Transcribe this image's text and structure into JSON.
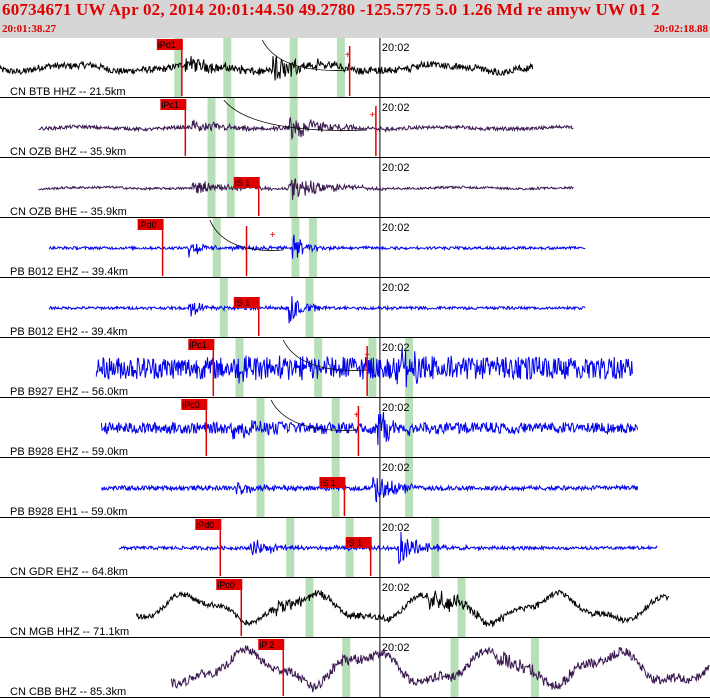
{
  "header": {
    "title": "60734671 UW Apr 02, 2014 20:01:44.50   49.2780 -125.5775  5.0 1.26 Md re amyw UW 01   2",
    "start_time": "20:01:38.27",
    "end_time": "20:02:18.88"
  },
  "colors": {
    "header_bg": "#d6d6d6",
    "header_text": "#e00000",
    "pick_red": "#e00000",
    "green_band": "#b8e0b8",
    "trace_black": "#000000",
    "trace_purple": "#3a1850",
    "trace_blue": "#0000ee"
  },
  "time_axis": {
    "start_s": 0,
    "end_s": 40.61,
    "minute_mark_s": 21.73,
    "minute_label": "20:02"
  },
  "traces": [
    {
      "label": "CN BTB HHZ -- 21.5km",
      "color": "black",
      "p_pick": "iPd1",
      "p_pick_s": 10.4,
      "s_pick": "",
      "s_pick_s": null,
      "green_s": [
        10.2,
        13.0,
        16.8,
        19.5
      ],
      "seis_start_s": 0.0,
      "seis_end_s": 30.5,
      "onset_s": 10.6,
      "s_arrival_s": 15.6,
      "noise": 0.12,
      "amp": 0.55,
      "lf": 0.12,
      "tail_s": 1.6,
      "end_pick_s": 20.0,
      "cross_s": 19.9,
      "curve_start_s": 15.0,
      "curve_end_s": 20.0
    },
    {
      "label": "CN OZB BHZ -- 35.9km",
      "color": "purple",
      "p_pick": "iPc1",
      "p_pick_s": 10.6,
      "s_pick": "",
      "s_pick_s": null,
      "green_s": [
        12.1,
        16.8,
        13.2
      ],
      "seis_start_s": 2.2,
      "seis_end_s": 32.8,
      "onset_s": 11.0,
      "s_arrival_s": 16.5,
      "noise": 0.06,
      "amp": 0.5,
      "lf": 0.04,
      "tail_s": 1.8,
      "end_pick_s": 21.5,
      "cross_s": 21.3,
      "curve_start_s": 12.8,
      "curve_end_s": 21.0
    },
    {
      "label": "CN OZB BHE -- 35.9km",
      "color": "purple",
      "p_pick": "",
      "p_pick_s": null,
      "s_pick": "iS 1",
      "s_pick_s": 14.8,
      "green_s": [
        12.1,
        16.8,
        13.2
      ],
      "seis_start_s": 2.2,
      "seis_end_s": 32.8,
      "onset_s": 11.0,
      "s_arrival_s": 16.5,
      "noise": 0.04,
      "amp": 0.55,
      "lf": 0.03,
      "tail_s": 1.6,
      "end_pick_s": null,
      "cross_s": null,
      "curve_start_s": null,
      "curve_end_s": null
    },
    {
      "label": "PB B012 EHZ -- 39.4km",
      "color": "blue",
      "p_pick": "iPd0",
      "p_pick_s": 9.3,
      "s_pick": "",
      "s_pick_s": null,
      "green_s": [
        12.4,
        16.9,
        17.9
      ],
      "seis_start_s": 2.8,
      "seis_end_s": 33.5,
      "onset_s": 10.8,
      "s_arrival_s": 16.7,
      "noise": 0.05,
      "amp": 0.6,
      "lf": 0.0,
      "tail_s": 0.8,
      "end_pick_s": 14.1,
      "cross_s": 15.6,
      "curve_start_s": 12.0,
      "curve_end_s": 16.2
    },
    {
      "label": "PB B012 EH2 -- 39.4km",
      "color": "blue",
      "p_pick": "",
      "p_pick_s": null,
      "s_pick": "iS 1",
      "s_pick_s": 14.8,
      "green_s": [
        12.8,
        17.7
      ],
      "seis_start_s": 2.8,
      "seis_end_s": 33.5,
      "onset_s": 10.8,
      "s_arrival_s": 16.5,
      "noise": 0.05,
      "amp": 0.6,
      "lf": 0.0,
      "tail_s": 0.8,
      "end_pick_s": null,
      "cross_s": null,
      "curve_start_s": null,
      "curve_end_s": null
    },
    {
      "label": "PB B927 EHZ -- 56.0km",
      "color": "blue",
      "p_pick": "iPc1",
      "p_pick_s": 12.2,
      "s_pick": "",
      "s_pick_s": null,
      "green_s": [
        13.7,
        18.2,
        21.3,
        23.4
      ],
      "seis_start_s": 5.5,
      "seis_end_s": 36.2,
      "onset_s": 13.6,
      "s_arrival_s": 22.4,
      "noise": 0.4,
      "amp": 0.55,
      "lf": 0.0,
      "tail_s": 1.6,
      "end_pick_s": 21.0,
      "cross_s": 21.0,
      "curve_start_s": 16.2,
      "curve_end_s": 21.0
    },
    {
      "label": "PB B928 EHZ -- 59.0km",
      "color": "blue",
      "p_pick": "iPc0",
      "p_pick_s": 11.8,
      "s_pick": "",
      "s_pick_s": null,
      "green_s": [
        14.9,
        19.2,
        23.4
      ],
      "seis_start_s": 5.8,
      "seis_end_s": 36.5,
      "onset_s": 13.3,
      "s_arrival_s": 21.6,
      "noise": 0.2,
      "amp": 0.6,
      "lf": 0.0,
      "tail_s": 1.4,
      "end_pick_s": 20.5,
      "cross_s": 20.4,
      "curve_start_s": 15.5,
      "curve_end_s": 20.5
    },
    {
      "label": "PB B928 EH1 -- 59.0km",
      "color": "blue",
      "p_pick": "",
      "p_pick_s": null,
      "s_pick": "iS 1",
      "s_pick_s": 19.7,
      "green_s": [
        14.9,
        19.2,
        23.4
      ],
      "seis_start_s": 5.8,
      "seis_end_s": 36.5,
      "onset_s": 13.5,
      "s_arrival_s": 21.3,
      "noise": 0.08,
      "amp": 0.65,
      "lf": 0.0,
      "tail_s": 1.1,
      "end_pick_s": null,
      "cross_s": null,
      "curve_start_s": null,
      "curve_end_s": null
    },
    {
      "label": "CN GDR EHZ -- 64.8km",
      "color": "blue",
      "p_pick": "iPd0",
      "p_pick_s": 12.6,
      "s_pick": "iS 1",
      "s_pick_s": 21.2,
      "green_s": [
        16.6,
        20.0,
        24.9
      ],
      "seis_start_s": 6.8,
      "seis_end_s": 37.6,
      "onset_s": 14.3,
      "s_arrival_s": 22.8,
      "noise": 0.06,
      "amp": 0.6,
      "lf": 0.0,
      "tail_s": 1.3,
      "end_pick_s": null,
      "cross_s": null,
      "curve_start_s": null,
      "curve_end_s": null
    },
    {
      "label": "CN MGB HHZ -- 71.1km",
      "color": "black",
      "p_pick": "iPc0",
      "p_pick_s": 13.8,
      "s_pick": "",
      "s_pick_s": null,
      "green_s": [
        17.7,
        26.4
      ],
      "seis_start_s": 7.8,
      "seis_end_s": 38.3,
      "onset_s": 15.5,
      "s_arrival_s": 24.5,
      "noise": 0.1,
      "amp": 0.45,
      "lf": 0.45,
      "tail_s": 2.2,
      "end_pick_s": null,
      "cross_s": null,
      "curve_start_s": null,
      "curve_end_s": null
    },
    {
      "label": "CN CBB BHZ -- 85.3km",
      "color": "purple",
      "p_pick": "iP 2",
      "p_pick_s": 16.2,
      "s_pick": "",
      "s_pick_s": null,
      "green_s": [
        19.8,
        26.0,
        30.6
      ],
      "seis_start_s": 9.8,
      "seis_end_s": 40.61,
      "onset_s": 17.6,
      "s_arrival_s": 28.4,
      "noise": 0.15,
      "amp": 0.3,
      "lf": 0.55,
      "tail_s": 3.0,
      "end_pick_s": null,
      "cross_s": null,
      "curve_start_s": null,
      "curve_end_s": null
    }
  ]
}
